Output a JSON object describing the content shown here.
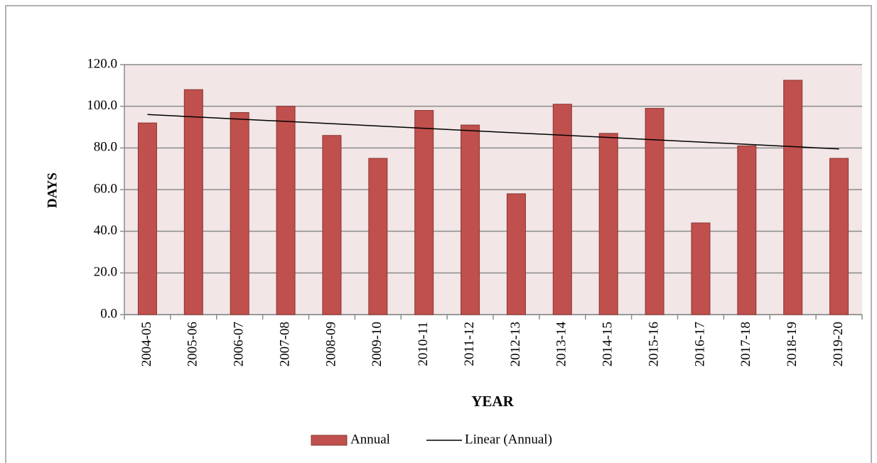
{
  "chart_data": {
    "type": "bar",
    "x_label": "YEAR",
    "y_label": "DAYS",
    "categories": [
      "2004-05",
      "2005-06",
      "2006-07",
      "2007-08",
      "2008-09",
      "2009-10",
      "2010-11",
      "2011-12",
      "2012-13",
      "2013-14",
      "2014-15",
      "2015-16",
      "2016-17",
      "2017-18",
      "2018-19",
      "2019-20"
    ],
    "series": [
      {
        "name": "Annual",
        "color": "#c0504d",
        "values": [
          92,
          108,
          97,
          100,
          86,
          75,
          98,
          91,
          58,
          101,
          87,
          99,
          44,
          81,
          112.5,
          75
        ]
      }
    ],
    "trendline": {
      "name": "Linear (Annual)",
      "kind": "linear",
      "color": "#000000"
    },
    "ylim": [
      0,
      120
    ],
    "yticks": [
      {
        "value": 0,
        "label": "0.0"
      },
      {
        "value": 20,
        "label": "20.0"
      },
      {
        "value": 40,
        "label": "40.0"
      },
      {
        "value": 60,
        "label": "60.0"
      },
      {
        "value": 80,
        "label": "80.0"
      },
      {
        "value": 100,
        "label": "100.0"
      },
      {
        "value": 120,
        "label": "120.0"
      }
    ],
    "grid": true,
    "legend": "bottom"
  }
}
